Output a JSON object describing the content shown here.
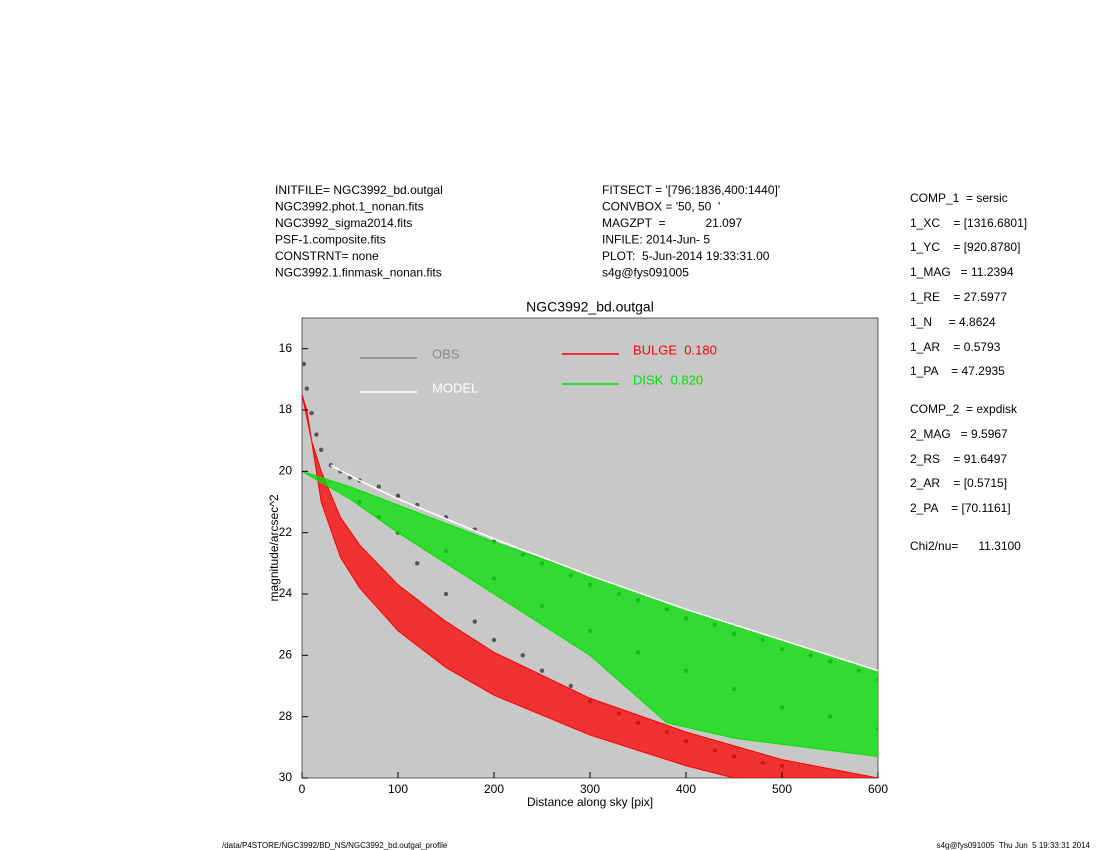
{
  "info_left": [
    "INITFILE= NGC3992_bd.outgal",
    "NGC3992.phot.1_nonan.fits",
    "NGC3992_sigma2014.fits",
    "PSF-1.composite.fits",
    "CONSTRNT= none",
    "NGC3992.1.finmask_nonan.fits"
  ],
  "info_middle": [
    "FITSECT = '[796:1836,400:1440]'",
    "CONVBOX = '50, 50  '",
    "MAGZPT  =            21.097",
    "INFILE: 2014-Jun- 5",
    "PLOT:  5-Jun-2014 19:33:31.00",
    "s4g@fys091005"
  ],
  "params": [
    "COMP_1  = sersic",
    "1_XC    = [1316.6801]",
    "1_YC    = [920.8780]",
    "1_MAG   = 11.2394",
    "1_RE    = 27.5977",
    "1_N     = 4.8624",
    "1_AR    = 0.5793",
    "1_PA    = 47.2935",
    "COMP_2  = expdisk",
    "2_MAG   = 9.5967",
    "2_RS    = 91.6497",
    "2_AR    = [0.5715]",
    "2_PA    = [70.1161]",
    "Chi2/nu=      11.3100"
  ],
  "footer_left": "/data/P4STORE/NGC3992/BD_NS/NGC3992_bd.outgal_profile",
  "footer_right": "s4g@fys091005  Thu Jun  5 19:33:31 2014",
  "chart_data": {
    "type": "scatter",
    "title": "NGC3992_bd.outgal",
    "x_label": "Distance along sky [pix]",
    "y_label": "magnitude/arcsec^2",
    "xlim": [
      0,
      600
    ],
    "xticks": [
      0,
      100,
      200,
      300,
      400,
      500,
      600
    ],
    "ylim": [
      30,
      15
    ],
    "yticks": [
      16,
      18,
      20,
      22,
      24,
      26,
      28,
      30
    ],
    "background": "#c8c8c8",
    "series": [
      {
        "name": "OBS",
        "color": "#555555",
        "legend_color": "#888888",
        "kind": "points",
        "x": [
          2,
          5,
          10,
          15,
          20,
          30,
          40,
          50,
          60,
          80,
          100,
          120,
          150,
          180,
          200,
          230,
          250,
          280,
          300,
          330,
          350,
          380,
          400,
          430,
          450,
          480,
          500,
          530,
          550,
          580,
          600,
          60,
          80,
          100,
          120,
          150,
          180,
          200,
          230,
          250,
          280,
          300,
          330,
          350,
          380,
          400,
          430,
          450,
          480,
          500,
          150,
          200,
          250,
          300,
          350,
          400,
          450,
          500,
          550,
          600
        ],
        "values": [
          16.5,
          17.3,
          18.1,
          18.8,
          19.3,
          19.8,
          20.0,
          20.2,
          20.3,
          20.5,
          20.8,
          21.1,
          21.5,
          21.9,
          22.3,
          22.7,
          23.0,
          23.4,
          23.7,
          24.0,
          24.2,
          24.5,
          24.8,
          25.0,
          25.3,
          25.5,
          25.8,
          26.0,
          26.2,
          26.5,
          26.8,
          21.0,
          21.5,
          22.0,
          23.0,
          24.0,
          24.9,
          25.5,
          26.0,
          26.5,
          27.0,
          27.5,
          27.9,
          28.2,
          28.5,
          28.8,
          29.1,
          29.3,
          29.5,
          29.6,
          22.6,
          23.5,
          24.4,
          25.2,
          25.9,
          26.5,
          27.1,
          27.7,
          28.0,
          28.4
        ]
      },
      {
        "name": "MODEL",
        "color": "#ffffff",
        "kind": "line",
        "x": [
          30,
          60,
          100,
          200,
          300,
          400,
          500,
          600
        ],
        "values": [
          19.8,
          20.3,
          20.9,
          22.2,
          23.4,
          24.5,
          25.5,
          26.5
        ]
      },
      {
        "name": "BULGE  0.180",
        "color": "#ff0000",
        "kind": "band",
        "x": [
          0,
          10,
          20,
          40,
          60,
          100,
          150,
          200,
          300,
          400,
          500,
          600
        ],
        "values": [
          17.5,
          19.0,
          20.0,
          21.5,
          22.4,
          23.7,
          24.9,
          25.9,
          27.4,
          28.5,
          29.4,
          30.0
        ],
        "x_low": [
          5,
          20,
          40,
          60,
          100,
          150,
          200,
          300,
          400,
          450
        ],
        "values_low": [
          18.0,
          21.0,
          22.8,
          23.8,
          25.2,
          26.4,
          27.3,
          28.6,
          29.6,
          30.0
        ]
      },
      {
        "name": "DISK  0.820",
        "color": "#00e000",
        "kind": "band",
        "x": [
          0,
          50,
          100,
          200,
          300,
          400,
          500,
          600
        ],
        "values": [
          20.0,
          20.5,
          21.1,
          22.3,
          23.4,
          24.5,
          25.5,
          26.5
        ],
        "x_low": [
          0,
          50,
          100,
          200,
          300,
          380,
          450,
          600
        ],
        "values_low": [
          20.0,
          20.9,
          22.0,
          24.0,
          26.0,
          28.2,
          28.7,
          29.3
        ]
      }
    ]
  }
}
